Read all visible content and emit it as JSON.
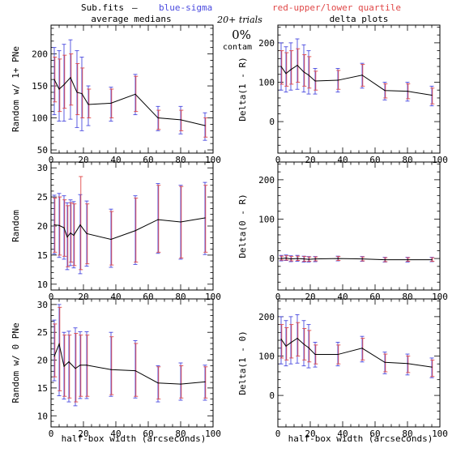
{
  "header": {
    "file_label": "Sub.fits",
    "dash": "—",
    "blue_label": "blue-sigma",
    "red_label": "red-upper/lower quartile",
    "trials_label": "20+ trials",
    "percent_label": "0%",
    "contam_label": "contam"
  },
  "colors": {
    "blue": "#4a4adf",
    "red": "#e04848",
    "line": "#000000"
  },
  "column_titles": {
    "left": "average medians",
    "right": "delta plots"
  },
  "x_axis_label": "half-box width (arcseconds)",
  "chart_data": [
    {
      "type": "line",
      "ylabel": "Random w/ 1+ PNe",
      "xlim": [
        0,
        100
      ],
      "ylim": [
        45,
        245
      ],
      "xticks": [
        0,
        20,
        40,
        60,
        80,
        100
      ],
      "yticks": [
        50,
        100,
        150,
        200
      ],
      "x": [
        2,
        5,
        8,
        12,
        16,
        19,
        23,
        37,
        52,
        66,
        80,
        95
      ],
      "y": [
        160,
        145,
        152,
        163,
        140,
        138,
        121,
        123,
        137,
        100,
        97,
        88
      ],
      "blue_err": [
        [
          210,
          105
        ],
        [
          205,
          95
        ],
        [
          215,
          95
        ],
        [
          222,
          98
        ],
        [
          205,
          85
        ],
        [
          195,
          80
        ],
        [
          150,
          88
        ],
        [
          148,
          95
        ],
        [
          168,
          105
        ],
        [
          118,
          80
        ],
        [
          118,
          75
        ],
        [
          108,
          65
        ]
      ],
      "red_err": [
        [
          195,
          125
        ],
        [
          192,
          110
        ],
        [
          198,
          115
        ],
        [
          200,
          120
        ],
        [
          185,
          105
        ],
        [
          178,
          100
        ],
        [
          145,
          100
        ],
        [
          145,
          100
        ],
        [
          165,
          110
        ],
        [
          112,
          82
        ],
        [
          112,
          80
        ],
        [
          100,
          70
        ]
      ]
    },
    {
      "type": "line",
      "ylabel": "Delta(1 - R)",
      "xlim": [
        0,
        100
      ],
      "ylim": [
        -80,
        245
      ],
      "xticks": [
        0,
        20,
        40,
        60,
        80,
        100
      ],
      "yticks": [
        0,
        100,
        200
      ],
      "x": [
        2,
        5,
        8,
        12,
        16,
        19,
        23,
        37,
        52,
        66,
        80,
        95
      ],
      "y": [
        140,
        122,
        132,
        143,
        126,
        118,
        103,
        105,
        118,
        79,
        77,
        67
      ],
      "blue_err": [
        [
          200,
          80
        ],
        [
          190,
          75
        ],
        [
          200,
          80
        ],
        [
          210,
          82
        ],
        [
          195,
          75
        ],
        [
          180,
          70
        ],
        [
          135,
          70
        ],
        [
          135,
          75
        ],
        [
          148,
          85
        ],
        [
          100,
          55
        ],
        [
          100,
          52
        ],
        [
          90,
          40
        ]
      ],
      "red_err": [
        [
          180,
          95
        ],
        [
          175,
          90
        ],
        [
          180,
          95
        ],
        [
          185,
          100
        ],
        [
          170,
          90
        ],
        [
          165,
          85
        ],
        [
          128,
          80
        ],
        [
          130,
          82
        ],
        [
          145,
          90
        ],
        [
          96,
          60
        ],
        [
          96,
          58
        ],
        [
          85,
          45
        ]
      ]
    },
    {
      "type": "line",
      "ylabel": "Random",
      "xlim": [
        0,
        100
      ],
      "ylim": [
        9,
        31
      ],
      "xticks": [
        0,
        20,
        40,
        60,
        80,
        100
      ],
      "yticks": [
        10,
        15,
        20,
        25,
        30
      ],
      "x": [
        2,
        5,
        8,
        10,
        12,
        14,
        18,
        22,
        37,
        52,
        66,
        80,
        95
      ],
      "y": [
        20.2,
        20.1,
        19.7,
        18.1,
        18.8,
        18.4,
        20.2,
        18.7,
        17.7,
        19.2,
        21.1,
        20.7,
        21.4
      ],
      "blue_err": [
        [
          25.3,
          15.2
        ],
        [
          25.6,
          14.6
        ],
        [
          25.2,
          14.3
        ],
        [
          24.0,
          12.5
        ],
        [
          24.5,
          13.2
        ],
        [
          24.2,
          12.8
        ],
        [
          25.4,
          11.8
        ],
        [
          24.3,
          13.1
        ],
        [
          22.9,
          12.9
        ],
        [
          25.2,
          13.4
        ],
        [
          27.3,
          15.3
        ],
        [
          27.0,
          14.3
        ],
        [
          27.5,
          15.1
        ]
      ],
      "red_err": [
        [
          24.8,
          15.5
        ],
        [
          25.0,
          15.0
        ],
        [
          24.5,
          14.8
        ],
        [
          23.5,
          13.0
        ],
        [
          24.0,
          13.8
        ],
        [
          23.8,
          13.2
        ],
        [
          28.5,
          12.5
        ],
        [
          23.8,
          13.5
        ],
        [
          22.5,
          13.3
        ],
        [
          24.8,
          13.8
        ],
        [
          27.0,
          15.5
        ],
        [
          26.8,
          14.5
        ],
        [
          27.0,
          15.5
        ]
      ]
    },
    {
      "type": "line",
      "ylabel": "Delta(0 - R)",
      "xlim": [
        0,
        100
      ],
      "ylim": [
        -80,
        245
      ],
      "xticks": [
        0,
        20,
        40,
        60,
        80,
        100
      ],
      "yticks": [
        0,
        100,
        200
      ],
      "x": [
        2,
        5,
        8,
        12,
        16,
        19,
        23,
        37,
        52,
        66,
        80,
        95
      ],
      "y": [
        0,
        1,
        -1,
        0,
        -1,
        -2,
        -1,
        0,
        -1,
        -3,
        -3,
        -3
      ],
      "blue_err": [
        [
          8,
          -6
        ],
        [
          9,
          -5
        ],
        [
          7,
          -8
        ],
        [
          8,
          -7
        ],
        [
          6,
          -9
        ],
        [
          5,
          -9
        ],
        [
          5,
          -8
        ],
        [
          6,
          -6
        ],
        [
          5,
          -7
        ],
        [
          3,
          -9
        ],
        [
          3,
          -9
        ],
        [
          3,
          -8
        ]
      ],
      "red_err": [
        [
          6,
          -4
        ],
        [
          7,
          -4
        ],
        [
          5,
          -6
        ],
        [
          6,
          -5
        ],
        [
          5,
          -7
        ],
        [
          4,
          -7
        ],
        [
          4,
          -6
        ],
        [
          5,
          -5
        ],
        [
          4,
          -6
        ],
        [
          2,
          -8
        ],
        [
          2,
          -7
        ],
        [
          2,
          -7
        ]
      ]
    },
    {
      "type": "line",
      "ylabel": "Random w/ 0 PNe",
      "xlim": [
        0,
        100
      ],
      "ylim": [
        8,
        31
      ],
      "xticks": [
        0,
        20,
        40,
        60,
        80,
        100
      ],
      "yticks": [
        10,
        15,
        20,
        25,
        30
      ],
      "x": [
        2,
        5,
        8,
        11,
        15,
        18,
        22,
        37,
        52,
        66,
        80,
        95
      ],
      "y": [
        20.7,
        22.9,
        18.9,
        19.7,
        18.5,
        19.1,
        19.1,
        18.3,
        18.1,
        15.9,
        15.7,
        16.1
      ],
      "blue_err": [
        [
          27.2,
          16.3
        ],
        [
          30.0,
          13.6
        ],
        [
          25.0,
          13.0
        ],
        [
          25.2,
          12.5
        ],
        [
          25.8,
          11.8
        ],
        [
          25.1,
          13.1
        ],
        [
          25.1,
          13.1
        ],
        [
          25.0,
          13.5
        ],
        [
          23.5,
          13.2
        ],
        [
          19.0,
          12.5
        ],
        [
          19.5,
          12.8
        ],
        [
          19.1,
          12.8
        ]
      ],
      "red_err": [
        [
          26.5,
          17.0
        ],
        [
          29.5,
          14.5
        ],
        [
          24.5,
          13.5
        ],
        [
          24.5,
          13.2
        ],
        [
          24.8,
          12.5
        ],
        [
          24.5,
          13.5
        ],
        [
          24.5,
          13.5
        ],
        [
          24.2,
          13.8
        ],
        [
          23.0,
          13.5
        ],
        [
          18.8,
          13.0
        ],
        [
          19.0,
          13.2
        ],
        [
          18.8,
          13.2
        ]
      ]
    },
    {
      "type": "line",
      "ylabel": "Delta(1 - 0)",
      "xlim": [
        0,
        100
      ],
      "ylim": [
        -80,
        245
      ],
      "xticks": [
        0,
        20,
        40,
        60,
        80,
        100
      ],
      "yticks": [
        0,
        100,
        200
      ],
      "x": [
        2,
        5,
        8,
        12,
        16,
        19,
        23,
        37,
        52,
        66,
        80,
        95
      ],
      "y": [
        143,
        125,
        134,
        145,
        130,
        121,
        104,
        104,
        120,
        84,
        81,
        72
      ],
      "blue_err": [
        [
          200,
          80
        ],
        [
          190,
          75
        ],
        [
          200,
          80
        ],
        [
          205,
          82
        ],
        [
          190,
          75
        ],
        [
          180,
          70
        ],
        [
          135,
          72
        ],
        [
          135,
          75
        ],
        [
          150,
          85
        ],
        [
          110,
          55
        ],
        [
          105,
          52
        ],
        [
          95,
          45
        ]
      ],
      "red_err": [
        [
          180,
          95
        ],
        [
          172,
          90
        ],
        [
          180,
          95
        ],
        [
          185,
          100
        ],
        [
          170,
          90
        ],
        [
          165,
          85
        ],
        [
          128,
          80
        ],
        [
          128,
          80
        ],
        [
          145,
          90
        ],
        [
          105,
          60
        ],
        [
          100,
          58
        ],
        [
          90,
          48
        ]
      ]
    }
  ]
}
